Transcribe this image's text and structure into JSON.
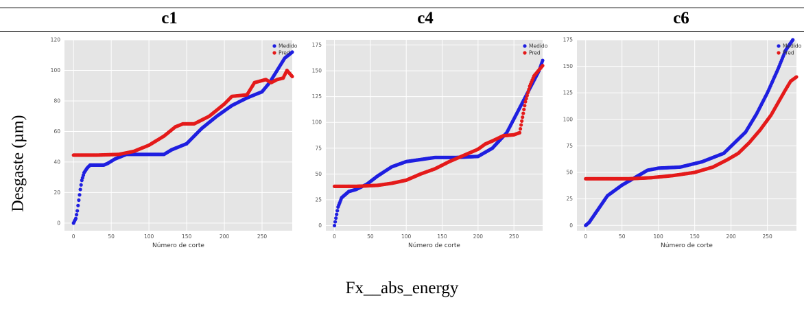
{
  "header": {
    "columns": [
      "c1",
      "c4",
      "c6"
    ]
  },
  "ylabel": "Desgaste (µm)",
  "caption": "Fx__abs_energy",
  "colors": {
    "medido": "#1f1fe0",
    "pred": "#e41a1a",
    "plot_bg": "#e5e5e5",
    "grid": "#ffffff"
  },
  "chart_data": [
    {
      "type": "scatter",
      "panel": "c1",
      "xlabel": "Número de corte",
      "xlim": [
        -12,
        290
      ],
      "ylim": [
        -5,
        120
      ],
      "xticks": [
        0,
        50,
        100,
        150,
        200,
        250
      ],
      "yticks": [
        0,
        20,
        40,
        60,
        80,
        100,
        120
      ],
      "legend": "top-right",
      "series": [
        {
          "name": "Medido",
          "color": "#1f1fe0",
          "points": [
            [
              0,
              0
            ],
            [
              3,
              3
            ],
            [
              5,
              8
            ],
            [
              7,
              15
            ],
            [
              9,
              22
            ],
            [
              11,
              28
            ],
            [
              14,
              33
            ],
            [
              18,
              36
            ],
            [
              22,
              38
            ],
            [
              30,
              38
            ],
            [
              40,
              38
            ],
            [
              45,
              39
            ],
            [
              55,
              42
            ],
            [
              70,
              45
            ],
            [
              100,
              45
            ],
            [
              120,
              45
            ],
            [
              130,
              48
            ],
            [
              150,
              52
            ],
            [
              170,
              62
            ],
            [
              190,
              70
            ],
            [
              210,
              77
            ],
            [
              230,
              82
            ],
            [
              250,
              86
            ],
            [
              260,
              92
            ],
            [
              270,
              100
            ],
            [
              280,
              108
            ],
            [
              290,
              112
            ]
          ]
        },
        {
          "name": "Pred",
          "color": "#e41a1a",
          "points": [
            [
              0,
              44.5
            ],
            [
              30,
              44.5
            ],
            [
              60,
              45
            ],
            [
              80,
              47
            ],
            [
              100,
              51
            ],
            [
              120,
              57
            ],
            [
              135,
              63
            ],
            [
              145,
              65
            ],
            [
              160,
              65
            ],
            [
              180,
              70
            ],
            [
              200,
              78
            ],
            [
              210,
              83
            ],
            [
              230,
              84
            ],
            [
              240,
              92
            ],
            [
              255,
              94
            ],
            [
              262,
              92
            ],
            [
              270,
              94
            ],
            [
              278,
              95
            ],
            [
              283,
              100
            ],
            [
              290,
              96
            ]
          ]
        }
      ]
    },
    {
      "type": "scatter",
      "panel": "c4",
      "xlabel": "Número de corte",
      "xlim": [
        -12,
        290
      ],
      "ylim": [
        -5,
        180
      ],
      "xticks": [
        0,
        50,
        100,
        150,
        200,
        250
      ],
      "yticks": [
        0,
        25,
        50,
        75,
        100,
        125,
        150,
        175
      ],
      "legend": "top-right",
      "series": [
        {
          "name": "Medido",
          "color": "#1f1fe0",
          "points": [
            [
              0,
              0
            ],
            [
              5,
              18
            ],
            [
              10,
              27
            ],
            [
              20,
              33
            ],
            [
              30,
              35
            ],
            [
              45,
              40
            ],
            [
              60,
              48
            ],
            [
              80,
              57
            ],
            [
              100,
              62
            ],
            [
              120,
              64
            ],
            [
              140,
              66
            ],
            [
              170,
              66
            ],
            [
              200,
              67
            ],
            [
              220,
              75
            ],
            [
              240,
              90
            ],
            [
              255,
              110
            ],
            [
              270,
              130
            ],
            [
              285,
              150
            ],
            [
              290,
              160
            ]
          ]
        },
        {
          "name": "Pred",
          "color": "#e41a1a",
          "points": [
            [
              0,
              38
            ],
            [
              30,
              38
            ],
            [
              60,
              39
            ],
            [
              80,
              41
            ],
            [
              100,
              44
            ],
            [
              120,
              50
            ],
            [
              140,
              55
            ],
            [
              160,
              62
            ],
            [
              180,
              68
            ],
            [
              200,
              74
            ],
            [
              210,
              79
            ],
            [
              220,
              82
            ],
            [
              235,
              87
            ],
            [
              250,
              88
            ],
            [
              258,
              90
            ],
            [
              262,
              105
            ],
            [
              266,
              120
            ],
            [
              272,
              135
            ],
            [
              278,
              145
            ],
            [
              284,
              150
            ],
            [
              290,
              155
            ]
          ]
        }
      ]
    },
    {
      "type": "scatter",
      "panel": "c6",
      "xlabel": "Número de corte",
      "xlim": [
        -12,
        290
      ],
      "ylim": [
        -5,
        175
      ],
      "xticks": [
        0,
        50,
        100,
        150,
        200,
        250
      ],
      "yticks": [
        0,
        25,
        50,
        75,
        100,
        125,
        150,
        175
      ],
      "legend": "top-right",
      "series": [
        {
          "name": "Medido",
          "color": "#1f1fe0",
          "points": [
            [
              0,
              0
            ],
            [
              5,
              3
            ],
            [
              10,
              8
            ],
            [
              20,
              18
            ],
            [
              30,
              28
            ],
            [
              50,
              38
            ],
            [
              70,
              46
            ],
            [
              85,
              52
            ],
            [
              100,
              54
            ],
            [
              130,
              55
            ],
            [
              160,
              60
            ],
            [
              190,
              68
            ],
            [
              205,
              78
            ],
            [
              220,
              88
            ],
            [
              235,
              105
            ],
            [
              250,
              125
            ],
            [
              265,
              148
            ],
            [
              275,
              165
            ],
            [
              285,
              175
            ]
          ]
        },
        {
          "name": "Pred",
          "color": "#e41a1a",
          "points": [
            [
              0,
              44
            ],
            [
              30,
              44
            ],
            [
              60,
              44
            ],
            [
              90,
              45
            ],
            [
              120,
              47
            ],
            [
              150,
              50
            ],
            [
              175,
              55
            ],
            [
              195,
              62
            ],
            [
              210,
              68
            ],
            [
              225,
              78
            ],
            [
              240,
              90
            ],
            [
              255,
              104
            ],
            [
              265,
              116
            ],
            [
              275,
              128
            ],
            [
              282,
              136
            ],
            [
              290,
              140
            ]
          ]
        }
      ]
    }
  ]
}
